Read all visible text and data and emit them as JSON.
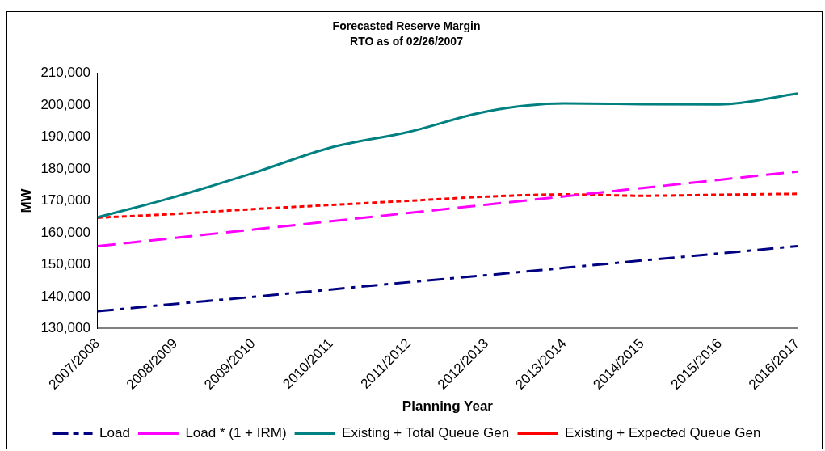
{
  "chart_data": {
    "type": "line",
    "title": "Forecasted Reserve Margin",
    "subtitle": "RTO as of 02/26/2007",
    "xlabel": "Planning Year",
    "ylabel": "MW",
    "categories": [
      "2007/2008",
      "2008/2009",
      "2009/2010",
      "2010/2011",
      "2011/2012",
      "2012/2013",
      "2013/2014",
      "2014/2015",
      "2015/2016",
      "2016/2017"
    ],
    "series": [
      {
        "name": "Load",
        "color": "#000080",
        "line_style": "dashdot",
        "values": [
          135400,
          137700,
          139900,
          142200,
          144500,
          146700,
          149000,
          151300,
          153500,
          155800
        ]
      },
      {
        "name": "Load * (1 + IRM)",
        "color": "#ff00ff",
        "line_style": "dashed",
        "values": [
          155800,
          158400,
          161000,
          163600,
          166200,
          168800,
          171400,
          174000,
          176600,
          179200
        ]
      },
      {
        "name": "Existing + Total Queue Gen",
        "color": "#008080",
        "line_style": "solid",
        "values": [
          164800,
          171300,
          178700,
          186700,
          191600,
          198000,
          200500,
          200300,
          200200,
          203600
        ]
      },
      {
        "name": "Existing + Expected Queue Gen",
        "color": "#ff0000",
        "line_style": "dotted",
        "values": [
          164700,
          165900,
          167400,
          168700,
          170000,
          171300,
          172000,
          171600,
          171900,
          172200
        ]
      }
    ],
    "ylim": [
      130000,
      210000
    ],
    "yticks": [
      {
        "value": 130000,
        "label": "130,000"
      },
      {
        "value": 140000,
        "label": "140,000"
      },
      {
        "value": 150000,
        "label": "150,000"
      },
      {
        "value": 160000,
        "label": "160,000"
      },
      {
        "value": 170000,
        "label": "170,000"
      },
      {
        "value": 180000,
        "label": "180,000"
      },
      {
        "value": 190000,
        "label": "190,000"
      },
      {
        "value": 200000,
        "label": "200,000"
      },
      {
        "value": 210000,
        "label": "210,000"
      }
    ],
    "grid": false,
    "legend": "bottom",
    "marker": "none"
  }
}
